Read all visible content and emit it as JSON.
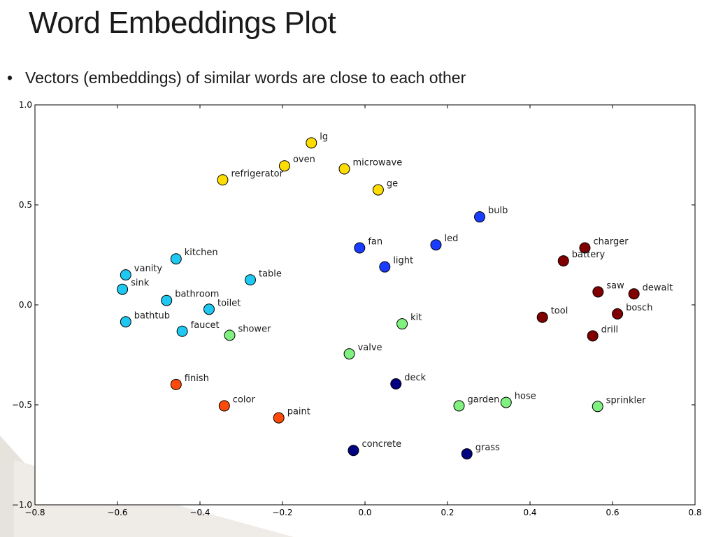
{
  "slide": {
    "title": "Word Embeddings Plot",
    "bullet": "Vectors (embeddings) of similar words are close to each other"
  },
  "chart_data": {
    "type": "scatter",
    "title": "",
    "xlabel": "",
    "ylabel": "",
    "xlim": [
      -0.8,
      0.8
    ],
    "ylim": [
      -1.0,
      1.0
    ],
    "xticks": [
      "-0.8",
      "-0.6",
      "-0.4",
      "-0.2",
      "0.0",
      "0.2",
      "0.4",
      "0.6",
      "0.8"
    ],
    "yticks": [
      "1.0",
      "0.5",
      "0.0",
      "-0.5",
      "-1.0"
    ],
    "grid": false,
    "colors": {
      "yellow": "#ffdd00",
      "blue": "#1a3cff",
      "darkred": "#800000",
      "cyan": "#1ec8f0",
      "green": "#80f080",
      "orange": "#ff4a0a",
      "navy": "#000080"
    },
    "points": [
      {
        "label": "lg",
        "x": -0.13,
        "y": 0.81,
        "color": "yellow"
      },
      {
        "label": "oven",
        "x": -0.195,
        "y": 0.695,
        "color": "yellow"
      },
      {
        "label": "microwave",
        "x": -0.05,
        "y": 0.68,
        "color": "yellow"
      },
      {
        "label": "refrigerator",
        "x": -0.345,
        "y": 0.625,
        "color": "yellow"
      },
      {
        "label": "ge",
        "x": 0.032,
        "y": 0.575,
        "color": "yellow"
      },
      {
        "label": "bulb",
        "x": 0.278,
        "y": 0.44,
        "color": "blue"
      },
      {
        "label": "led",
        "x": 0.172,
        "y": 0.3,
        "color": "blue"
      },
      {
        "label": "fan",
        "x": -0.013,
        "y": 0.285,
        "color": "blue"
      },
      {
        "label": "light",
        "x": 0.048,
        "y": 0.19,
        "color": "blue"
      },
      {
        "label": "charger",
        "x": 0.533,
        "y": 0.285,
        "color": "darkred"
      },
      {
        "label": "battery",
        "x": 0.481,
        "y": 0.22,
        "color": "darkred"
      },
      {
        "label": "saw",
        "x": 0.565,
        "y": 0.065,
        "color": "darkred"
      },
      {
        "label": "dewalt",
        "x": 0.652,
        "y": 0.055,
        "color": "darkred"
      },
      {
        "label": "bosch",
        "x": 0.612,
        "y": -0.045,
        "color": "darkred"
      },
      {
        "label": "tool",
        "x": 0.43,
        "y": -0.062,
        "color": "darkred"
      },
      {
        "label": "drill",
        "x": 0.552,
        "y": -0.155,
        "color": "darkred"
      },
      {
        "label": "kitchen",
        "x": -0.458,
        "y": 0.23,
        "color": "cyan"
      },
      {
        "label": "vanity",
        "x": -0.58,
        "y": 0.15,
        "color": "cyan"
      },
      {
        "label": "sink",
        "x": -0.588,
        "y": 0.078,
        "color": "cyan"
      },
      {
        "label": "table",
        "x": -0.278,
        "y": 0.125,
        "color": "cyan"
      },
      {
        "label": "bathroom",
        "x": -0.481,
        "y": 0.022,
        "color": "cyan"
      },
      {
        "label": "toilet",
        "x": -0.378,
        "y": -0.022,
        "color": "cyan"
      },
      {
        "label": "bathtub",
        "x": -0.58,
        "y": -0.085,
        "color": "cyan"
      },
      {
        "label": "faucet",
        "x": -0.443,
        "y": -0.132,
        "color": "cyan"
      },
      {
        "label": "shower",
        "x": -0.328,
        "y": -0.152,
        "color": "green"
      },
      {
        "label": "kit",
        "x": 0.09,
        "y": -0.095,
        "color": "green"
      },
      {
        "label": "valve",
        "x": -0.038,
        "y": -0.245,
        "color": "green"
      },
      {
        "label": "garden",
        "x": 0.228,
        "y": -0.505,
        "color": "green"
      },
      {
        "label": "hose",
        "x": 0.342,
        "y": -0.488,
        "color": "green"
      },
      {
        "label": "sprinkler",
        "x": 0.564,
        "y": -0.508,
        "color": "green"
      },
      {
        "label": "finish",
        "x": -0.458,
        "y": -0.398,
        "color": "orange"
      },
      {
        "label": "color",
        "x": -0.341,
        "y": -0.505,
        "color": "orange"
      },
      {
        "label": "paint",
        "x": -0.209,
        "y": -0.565,
        "color": "orange"
      },
      {
        "label": "deck",
        "x": 0.075,
        "y": -0.395,
        "color": "navy"
      },
      {
        "label": "concrete",
        "x": -0.028,
        "y": -0.728,
        "color": "navy"
      },
      {
        "label": "grass",
        "x": 0.247,
        "y": -0.745,
        "color": "navy"
      }
    ]
  }
}
